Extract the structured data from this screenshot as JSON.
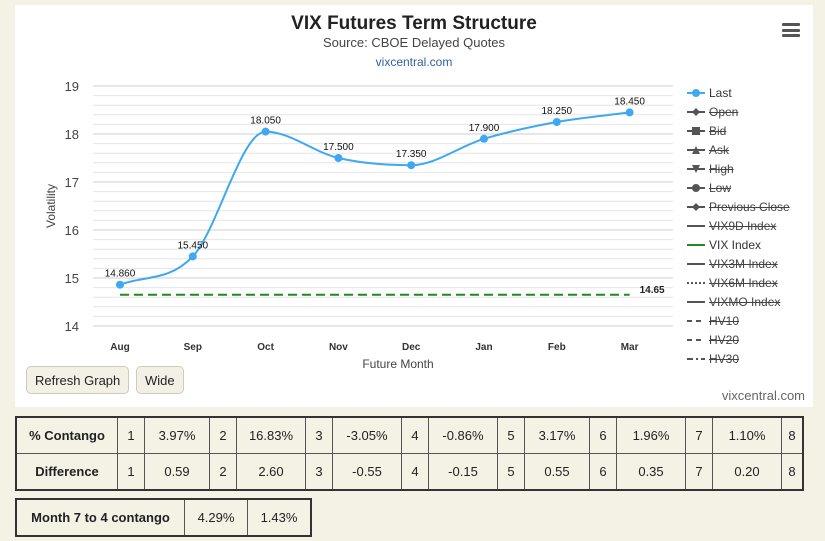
{
  "chart_header": {
    "title": "VIX Futures Term Structure",
    "subtitle": "Source: CBOE Delayed Quotes",
    "link": "vixcentral.com"
  },
  "chart_data": {
    "type": "line",
    "title": "VIX Futures Term Structure",
    "subtitle": "Source: CBOE Delayed Quotes",
    "xlabel": "Future Month",
    "ylabel": "Volatility",
    "categories": [
      "Aug",
      "Sep",
      "Oct",
      "Nov",
      "Dec",
      "Jan",
      "Feb",
      "Mar"
    ],
    "ylim": [
      14,
      19
    ],
    "yticks": [
      14,
      15,
      16,
      17,
      18,
      19
    ],
    "grid": true,
    "legend_position": "right",
    "series": [
      {
        "name": "Last",
        "values": [
          14.86,
          15.45,
          18.05,
          17.5,
          17.35,
          17.9,
          18.25,
          18.45
        ],
        "labels": [
          "14.860",
          "15.450",
          "18.050",
          "17.500",
          "17.350",
          "17.900",
          "18.250",
          "18.450"
        ],
        "color": "#3ea8f0"
      },
      {
        "name": "VIX Index",
        "values": [
          14.65,
          14.65,
          14.65,
          14.65,
          14.65,
          14.65,
          14.65,
          14.65
        ],
        "end_label": "14.65",
        "color": "#1e8c1e",
        "dash": "dashed"
      }
    ]
  },
  "legend": [
    {
      "label": "Last",
      "active": true,
      "symbol": "circle-line",
      "color": "#3ea8f0"
    },
    {
      "label": "Open",
      "active": false,
      "symbol": "diamond-line",
      "color": "#555"
    },
    {
      "label": "Bid",
      "active": false,
      "symbol": "square-line",
      "color": "#555"
    },
    {
      "label": "Ask",
      "active": false,
      "symbol": "triangle-line",
      "color": "#555"
    },
    {
      "label": "High",
      "active": false,
      "symbol": "triangle-down-line",
      "color": "#555"
    },
    {
      "label": "Low",
      "active": false,
      "symbol": "circle-line",
      "color": "#555"
    },
    {
      "label": "Previous Close",
      "active": false,
      "symbol": "diamond-line",
      "color": "#555"
    },
    {
      "label": "VIX9D Index",
      "active": false,
      "symbol": "solid",
      "color": "#555"
    },
    {
      "label": "VIX Index",
      "active": true,
      "symbol": "solid",
      "color": "#1e8c1e"
    },
    {
      "label": "VIX3M Index",
      "active": false,
      "symbol": "solid",
      "color": "#555"
    },
    {
      "label": "VIX6M Index",
      "active": false,
      "symbol": "dotted",
      "color": "#555"
    },
    {
      "label": "VIXMO Index",
      "active": false,
      "symbol": "solid",
      "color": "#555"
    },
    {
      "label": "HV10",
      "active": false,
      "symbol": "dashed",
      "color": "#555"
    },
    {
      "label": "HV20",
      "active": false,
      "symbol": "dashed",
      "color": "#555"
    },
    {
      "label": "HV30",
      "active": false,
      "symbol": "dashdot",
      "color": "#555"
    }
  ],
  "buttons": {
    "refresh": "Refresh Graph",
    "wide": "Wide"
  },
  "credit": "vixcentral.com",
  "contango_table": {
    "rows": [
      {
        "label": "% Contango",
        "cells": [
          "1",
          "3.97%",
          "2",
          "16.83%",
          "3",
          "-3.05%",
          "4",
          "-0.86%",
          "5",
          "3.17%",
          "6",
          "1.96%",
          "7",
          "1.10%",
          "8"
        ]
      },
      {
        "label": "Difference",
        "cells": [
          "1",
          "0.59",
          "2",
          "2.60",
          "3",
          "-0.55",
          "4",
          "-0.15",
          "5",
          "0.55",
          "6",
          "0.35",
          "7",
          "0.20",
          "8"
        ]
      }
    ]
  },
  "summary_table": {
    "label": "Month 7 to 4 contango",
    "values": [
      "4.29%",
      "1.43%"
    ]
  }
}
